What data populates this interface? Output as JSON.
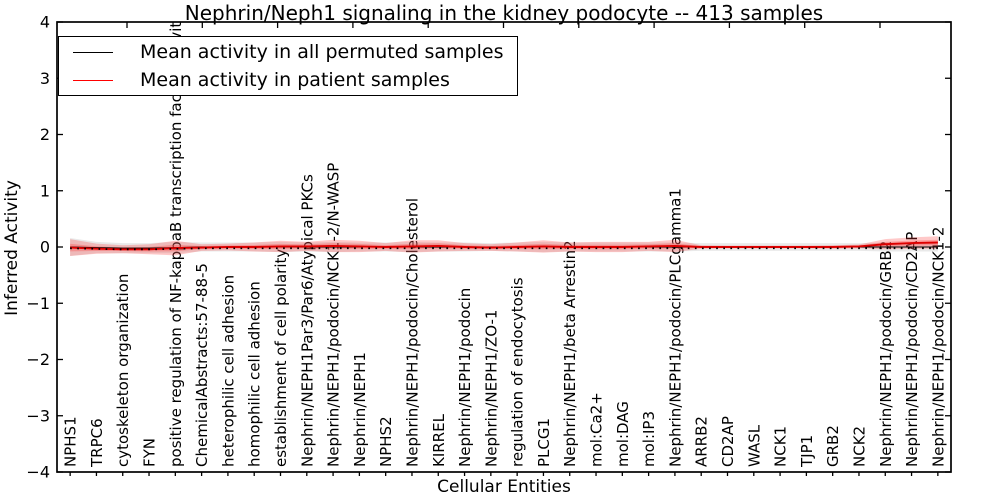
{
  "figure": {
    "title": "Nephrin/Neph1 signaling in the kidney podocyte -- 413 samples"
  },
  "legend": {
    "position": "upper left",
    "items": [
      {
        "label": "Mean activity in all permuted samples",
        "color": "#000000"
      },
      {
        "label": "Mean activity in patient samples",
        "color": "#ff0000"
      }
    ]
  },
  "colors": {
    "patient_line": "#dd0000",
    "patient_band": "#ff3030",
    "permuted_line": "#000000",
    "permuted_band": "#999999",
    "axis": "#000000"
  },
  "chart_data": {
    "type": "line",
    "title": "Nephrin/Neph1 signaling in the kidney podocyte -- 413 samples",
    "xlabel": "Cellular Entities",
    "ylabel": "Inferred Activity",
    "ylim": [
      -4,
      4
    ],
    "yticks": [
      4,
      3,
      2,
      1,
      0,
      -1,
      -2,
      -3,
      -4
    ],
    "grid": false,
    "legend_position": "upper left",
    "categories": [
      "NPHS1",
      "TRPC6",
      "cytoskeleton organization",
      "FYN",
      "positive regulation of NF-kappaB transcription factor activity",
      "ChemicalAbstracts:57-88-5",
      "heterophilic cell adhesion",
      "homophilic cell adhesion",
      "establishment of cell polarity",
      "Nephrin/NEPH1Par3/Par6/Atypical PKCs",
      "Nephrin/NEPH1/podocin/NCK1-2/N-WASP",
      "Nephrin/NEPH1",
      "NPHS2",
      "Nephrin/NEPH1/podocin/Cholesterol",
      "KIRREL",
      "Nephrin/NEPH1/podocin",
      "Nephrin/NEPH1/ZO-1",
      "regulation of endocytosis",
      "PLCG1",
      "Nephrin/NEPH1/beta Arrestin2",
      "mol:Ca2+",
      "mol:DAG",
      "mol:IP3",
      "Nephrin/NEPH1/podocin/PLCgamma1",
      "ARRB2",
      "CD2AP",
      "WASL",
      "NCK1",
      "TJP1",
      "GRB2",
      "NCK2",
      "Nephrin/NEPH1/podocin/GRB2",
      "Nephrin/NEPH1/podocin/CD2AP",
      "Nephrin/NEPH1/podocin/NCK1-2"
    ],
    "series": [
      {
        "name": "Mean activity in all permuted samples",
        "color": "#000000",
        "line_style": "solid-with-dotted-overlay",
        "values": [
          0,
          -0.01,
          -0.02,
          -0.02,
          -0.01,
          0,
          0,
          0,
          0,
          0,
          0,
          0,
          0,
          0,
          0,
          0,
          0,
          0,
          0,
          0,
          0,
          0,
          0,
          0,
          0,
          0,
          0,
          0,
          0,
          0,
          0,
          0,
          0,
          0
        ],
        "band_half_width": [
          0.16,
          0.1,
          0.09,
          0.09,
          0.1,
          0.08,
          0.08,
          0.08,
          0.09,
          0.08,
          0.09,
          0.08,
          0.08,
          0.09,
          0.08,
          0.08,
          0.07,
          0.08,
          0.09,
          0.08,
          0.08,
          0.08,
          0.08,
          0.08,
          0.07,
          0.07,
          0.07,
          0.07,
          0.07,
          0.07,
          0.07,
          0.08,
          0.08,
          0.08
        ]
      },
      {
        "name": "Mean activity in patient samples",
        "color": "#dd0000",
        "line_style": "solid",
        "values": [
          -0.01,
          -0.03,
          -0.04,
          -0.04,
          -0.02,
          -0.01,
          0,
          0,
          0.01,
          0.01,
          0.02,
          0.01,
          0,
          0.01,
          0.02,
          0,
          -0.01,
          0,
          0.01,
          0,
          0,
          0,
          0.01,
          0.02,
          0,
          0,
          0,
          0,
          0,
          0,
          0.01,
          0.05,
          0.07,
          0.08
        ],
        "band_half_width": [
          0.15,
          0.09,
          0.07,
          0.09,
          0.13,
          0.06,
          0.06,
          0.08,
          0.1,
          0.08,
          0.11,
          0.1,
          0.07,
          0.11,
          0.1,
          0.07,
          0.06,
          0.08,
          0.11,
          0.08,
          0.09,
          0.09,
          0.08,
          0.11,
          0.03,
          0.025,
          0.025,
          0.025,
          0.025,
          0.03,
          0.035,
          0.09,
          0.1,
          0.11
        ]
      }
    ]
  }
}
